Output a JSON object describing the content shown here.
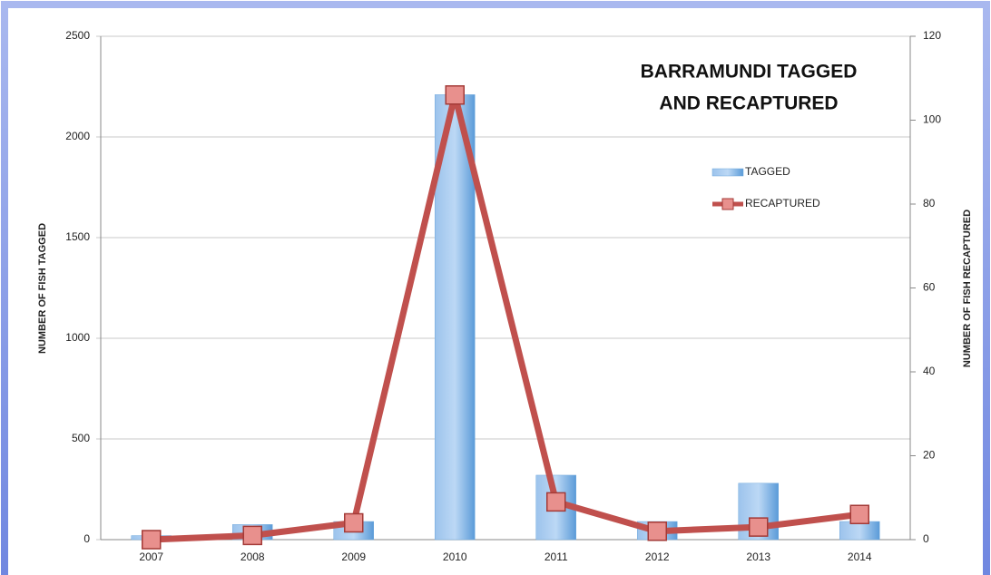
{
  "chart_data": {
    "type": "bar_line",
    "title": [
      "BARRAMUNDI TAGGED",
      "AND RECAPTURED"
    ],
    "ylabel": "NUMBER OF FISH TAGGED",
    "y2label": "NUMBER OF FISH RECAPTURED",
    "categories": [
      "2007",
      "2008",
      "2009",
      "2010",
      "2011",
      "2012",
      "2013",
      "2014"
    ],
    "series": [
      {
        "name": "TAGGED",
        "type": "bar",
        "color": "#6fa8dc",
        "values": [
          20,
          75,
          90,
          2210,
          320,
          90,
          280,
          90
        ]
      },
      {
        "name": "RECAPTURED",
        "type": "line",
        "axis": "y2",
        "color": "#c0504d",
        "values": [
          0,
          1,
          4,
          106,
          9,
          2,
          3,
          6
        ]
      }
    ],
    "ylim": [
      0,
      2500
    ],
    "yticks": [
      0,
      500,
      1000,
      1500,
      2000,
      2500
    ],
    "y2lim": [
      0,
      120
    ],
    "y2ticks": [
      0,
      20,
      40,
      60,
      80,
      100,
      120
    ],
    "grid": true
  }
}
